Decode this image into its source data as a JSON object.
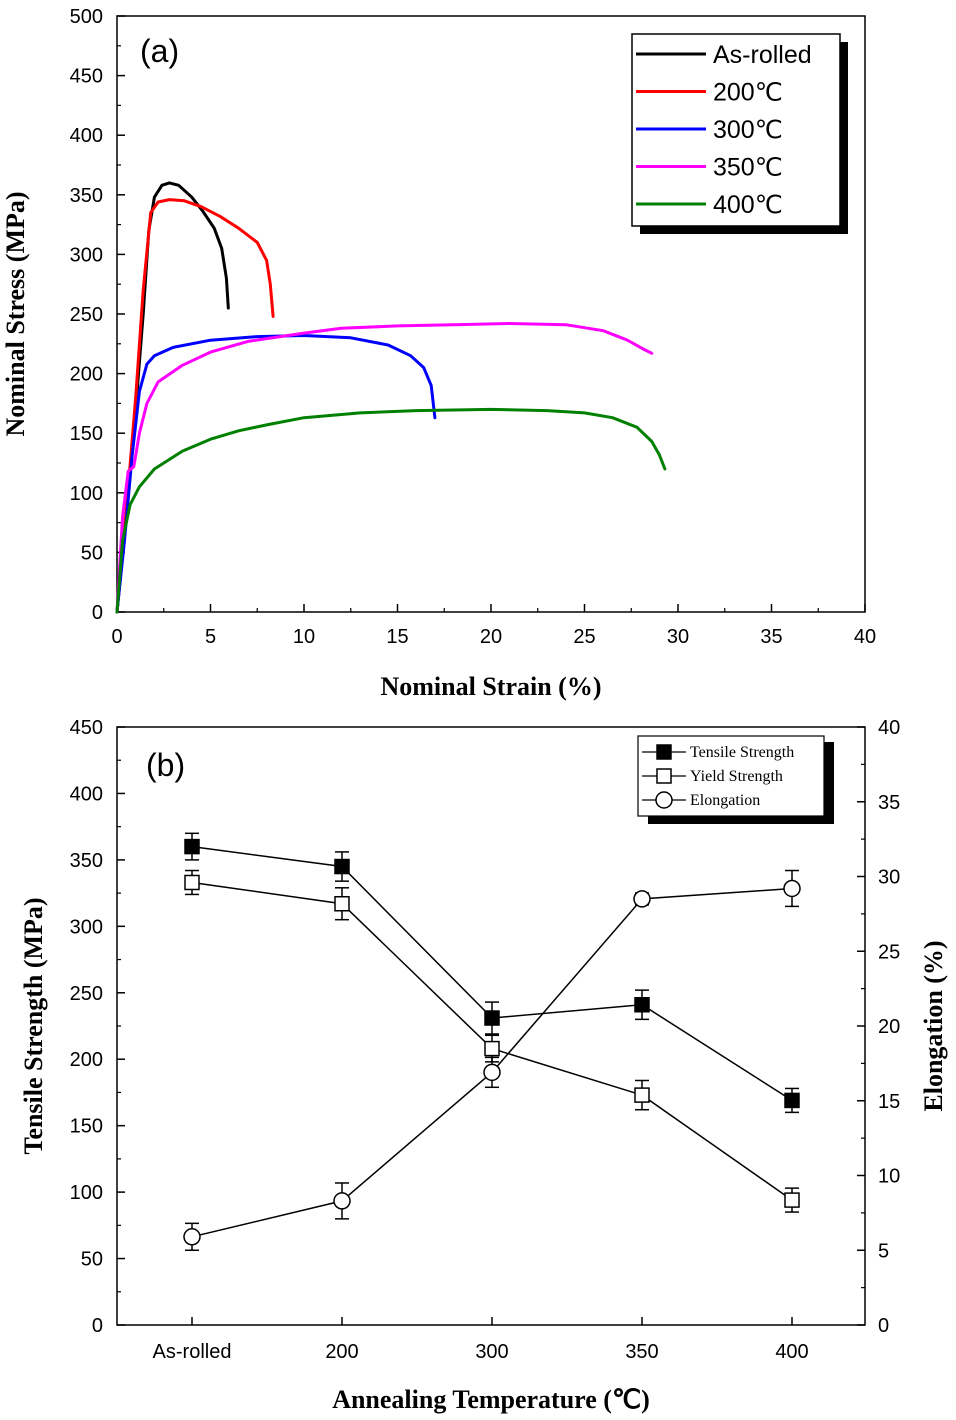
{
  "chart_data": [
    {
      "panel_label": "(a)",
      "type": "line",
      "xlabel": "Nominal Strain (%)",
      "ylabel": "Nominal Stress (MPa)",
      "xlim": [
        0,
        40
      ],
      "ylim": [
        0,
        500
      ],
      "xticks": [
        "0",
        "5",
        "10",
        "15",
        "20",
        "25",
        "30",
        "35",
        "40"
      ],
      "yticks": [
        "0",
        "50",
        "100",
        "150",
        "200",
        "250",
        "300",
        "350",
        "400",
        "450",
        "500"
      ],
      "legend_position": "top-right",
      "series": [
        {
          "name": "As-rolled",
          "color": "#000000",
          "points": [
            [
              0,
              0
            ],
            [
              0.5,
              80
            ],
            [
              1,
              170
            ],
            [
              1.4,
              250
            ],
            [
              1.7,
              320
            ],
            [
              2,
              348
            ],
            [
              2.4,
              358
            ],
            [
              2.8,
              360
            ],
            [
              3.3,
              358
            ],
            [
              4,
              348
            ],
            [
              4.6,
              336
            ],
            [
              5.2,
              322
            ],
            [
              5.6,
              305
            ],
            [
              5.85,
              280
            ],
            [
              5.95,
              255
            ]
          ]
        },
        {
          "name": "200℃",
          "color": "#ff0000",
          "points": [
            [
              0,
              0
            ],
            [
              0.5,
              85
            ],
            [
              1,
              180
            ],
            [
              1.4,
              270
            ],
            [
              1.8,
              335
            ],
            [
              2.2,
              344
            ],
            [
              2.8,
              346
            ],
            [
              3.6,
              345
            ],
            [
              4.5,
              340
            ],
            [
              5.5,
              332
            ],
            [
              6.5,
              322
            ],
            [
              7.5,
              310
            ],
            [
              8,
              295
            ],
            [
              8.2,
              275
            ],
            [
              8.35,
              248
            ]
          ]
        },
        {
          "name": "300℃",
          "color": "#0000ff",
          "points": [
            [
              0,
              0
            ],
            [
              0.4,
              60
            ],
            [
              0.8,
              130
            ],
            [
              1.2,
              185
            ],
            [
              1.6,
              208
            ],
            [
              2,
              215
            ],
            [
              3,
              222
            ],
            [
              5,
              228
            ],
            [
              7.5,
              231
            ],
            [
              10,
              232
            ],
            [
              12.5,
              230
            ],
            [
              14.5,
              224
            ],
            [
              15.7,
              215
            ],
            [
              16.4,
              205
            ],
            [
              16.8,
              190
            ],
            [
              17,
              163
            ]
          ]
        },
        {
          "name": "350℃",
          "color": "#ff00ff",
          "points": [
            [
              0,
              0
            ],
            [
              0.3,
              80
            ],
            [
              0.6,
              118
            ],
            [
              0.9,
              122
            ],
            [
              1.2,
              150
            ],
            [
              1.6,
              175
            ],
            [
              2.2,
              193
            ],
            [
              3.5,
              207
            ],
            [
              5,
              218
            ],
            [
              7,
              227
            ],
            [
              10,
              234
            ],
            [
              12,
              238
            ],
            [
              15,
              240
            ],
            [
              18,
              241
            ],
            [
              21,
              242
            ],
            [
              24,
              241
            ],
            [
              26,
              236
            ],
            [
              27.3,
              228
            ],
            [
              28.1,
              221
            ],
            [
              28.6,
              217
            ]
          ]
        },
        {
          "name": "400℃",
          "color": "#008000",
          "points": [
            [
              0,
              0
            ],
            [
              0.3,
              60
            ],
            [
              0.7,
              90
            ],
            [
              1.2,
              105
            ],
            [
              2,
              120
            ],
            [
              3.5,
              135
            ],
            [
              5,
              145
            ],
            [
              6.5,
              152
            ],
            [
              8,
              157
            ],
            [
              10,
              163
            ],
            [
              13,
              167
            ],
            [
              16,
              169
            ],
            [
              20,
              170
            ],
            [
              23,
              169
            ],
            [
              25,
              167
            ],
            [
              26.5,
              163
            ],
            [
              27.8,
              155
            ],
            [
              28.6,
              143
            ],
            [
              29,
              132
            ],
            [
              29.3,
              120
            ]
          ]
        }
      ]
    },
    {
      "panel_label": "(b)",
      "type": "line",
      "xlabel": "Annealing Temperature (℃)",
      "ylabel": "Tensile Strength (MPa)",
      "y2label": "Elongation (%)",
      "categories": [
        "As-rolled",
        "200",
        "300",
        "350",
        "400"
      ],
      "ylim": [
        0,
        450
      ],
      "y2lim": [
        0,
        40
      ],
      "yticks": [
        "0",
        "50",
        "100",
        "150",
        "200",
        "250",
        "300",
        "350",
        "400",
        "450"
      ],
      "y2ticks": [
        "0",
        "5",
        "10",
        "15",
        "20",
        "25",
        "30",
        "35",
        "40"
      ],
      "legend_position": "top-right",
      "series": [
        {
          "name": "Tensile Strength",
          "marker": "filled-square",
          "axis": "left",
          "values": [
            360,
            345,
            231,
            241,
            169
          ],
          "errors": [
            10,
            11,
            12,
            11,
            9
          ]
        },
        {
          "name": "Yield Strength",
          "marker": "open-square",
          "axis": "left",
          "values": [
            333,
            317,
            208,
            173,
            94
          ],
          "errors": [
            9,
            12,
            10,
            11,
            9
          ]
        },
        {
          "name": "Elongation",
          "marker": "open-circle",
          "axis": "right",
          "values": [
            5.9,
            8.3,
            16.9,
            28.5,
            29.2
          ],
          "errors": [
            0.9,
            1.2,
            1.0,
            0.4,
            1.2
          ]
        }
      ]
    }
  ]
}
